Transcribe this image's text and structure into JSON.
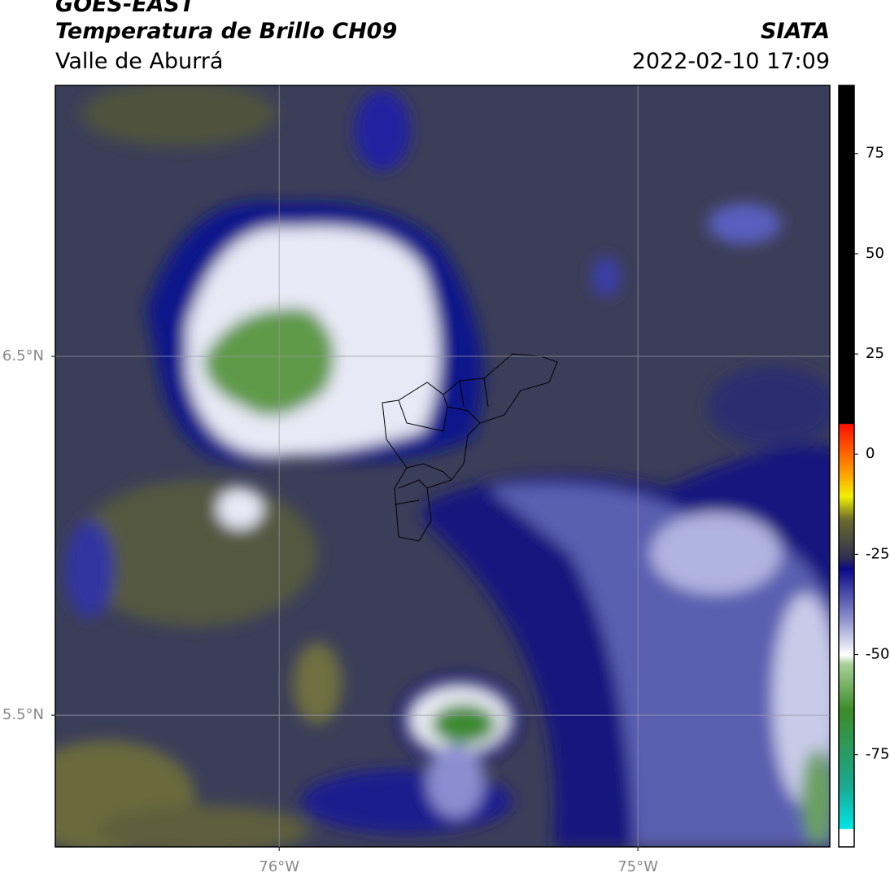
{
  "header": {
    "title": "GOES-EAST",
    "subtitle": "Temperatura de Brillo CH09",
    "region": "Valle de Aburrá",
    "source": "SIATA",
    "datetime": "2022-02-10 17:09"
  },
  "map": {
    "xlim": [
      -76.624,
      -74.465
    ],
    "ylim": [
      5.133,
      7.255
    ],
    "xticks": [
      {
        "value": -76,
        "label": "76°W"
      },
      {
        "value": -75,
        "label": "75°W"
      }
    ],
    "yticks": [
      {
        "value": 6.5,
        "label": "6.5°N"
      },
      {
        "value": 5.5,
        "label": "5.5°N"
      }
    ],
    "grid": true
  },
  "colorbar": {
    "lim": [
      -98,
      92
    ],
    "ticks": [
      75,
      50,
      25,
      0,
      -25,
      -50,
      -75
    ]
  }
}
